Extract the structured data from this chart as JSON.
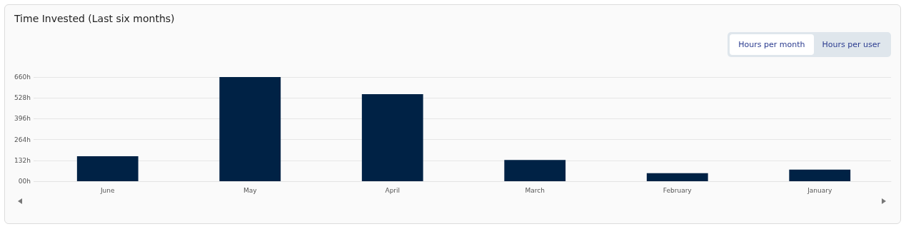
{
  "chart_data": {
    "type": "bar",
    "title": "Time Invested (Last six months)",
    "categories": [
      "June",
      "May",
      "April",
      "March",
      "February",
      "January"
    ],
    "values": [
      158,
      660,
      551,
      134,
      51,
      73
    ],
    "color": "#002245",
    "ylim": [
      0,
      660
    ],
    "yticks": [
      {
        "value": 0,
        "label": "00h"
      },
      {
        "value": 132,
        "label": "132h"
      },
      {
        "value": 264,
        "label": "264h"
      },
      {
        "value": 396,
        "label": "396h"
      },
      {
        "value": 528,
        "label": "528h"
      },
      {
        "value": 660,
        "label": "660h"
      }
    ],
    "grid": "y",
    "annotations": [
      "Hours per month",
      "Hours per user"
    ]
  }
}
